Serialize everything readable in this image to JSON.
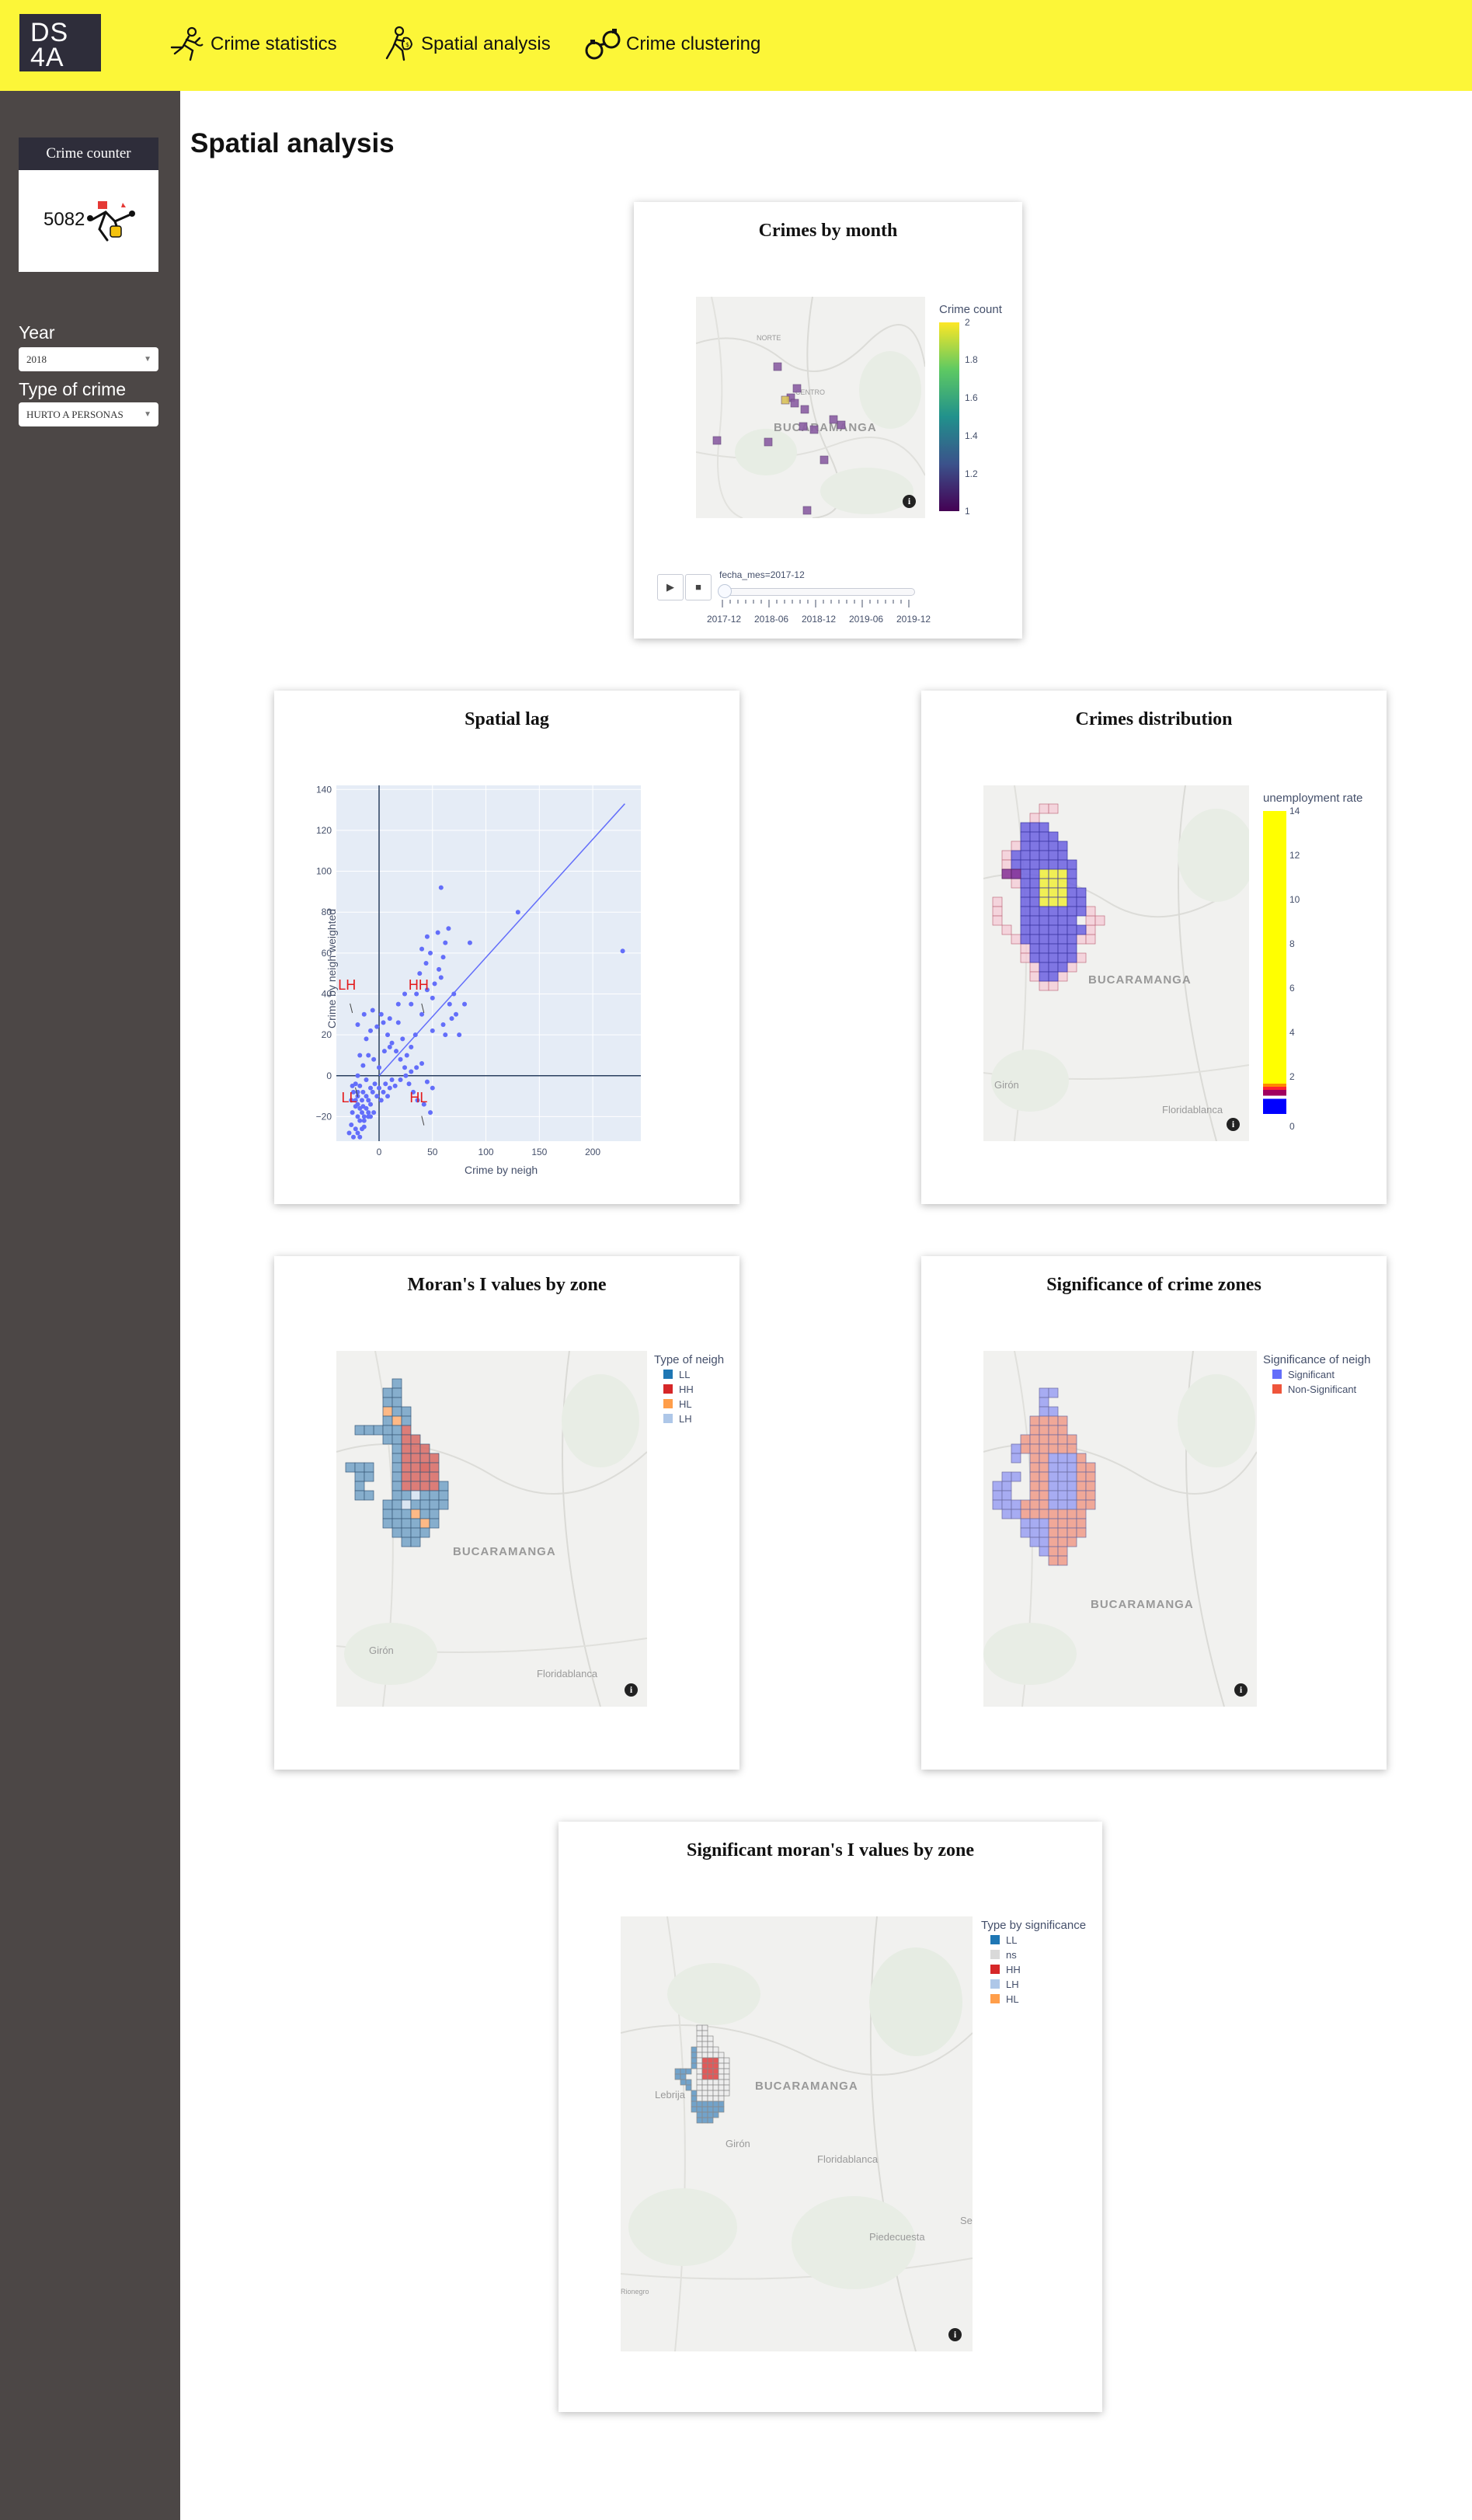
{
  "logo": {
    "line1": "DS",
    "line2": "4A"
  },
  "nav": {
    "items": [
      {
        "label": "Crime statistics",
        "icon": "running-thief-icon"
      },
      {
        "label": "Spatial analysis",
        "icon": "thief-bag-icon"
      },
      {
        "label": "Crime clustering",
        "icon": "handcuffs-icon"
      }
    ]
  },
  "sidebar": {
    "counter": {
      "title": "Crime counter",
      "value": "5082",
      "icon": "robbery-icon"
    },
    "year": {
      "label": "Year",
      "value": "2018"
    },
    "crime_type": {
      "label": "Type of crime",
      "value": "HURTO A PERSONAS"
    }
  },
  "main": {
    "title": "Spatial analysis"
  },
  "colors": {
    "topbar": "#fcf638",
    "sidebar": "#4c4746",
    "dark": "#2e2d3a",
    "plotly_blue": "#636efa",
    "plotly_red": "#ef553b",
    "ll": "#1f77b4",
    "hh": "#d62728",
    "hl": "#ff7f0e",
    "lh": "#aec7e8"
  },
  "crimes_by_month": {
    "title": "Crimes by month",
    "colorbar_title": "Crime count",
    "colorbar_ticks": [
      "2",
      "1.8",
      "1.6",
      "1.4",
      "1.2",
      "1"
    ],
    "slider_label": "fecha_mes=2017-12",
    "slider_ticks": [
      "2017-12",
      "2018-06",
      "2018-12",
      "2019-06",
      "2019-12"
    ],
    "play_icon": "play-icon",
    "stop_icon": "stop-icon",
    "map_labels": {
      "city": "BUCARAMANGA",
      "north": "NORTE",
      "center": "CENTRO"
    }
  },
  "spatial_lag": {
    "title": "Spatial lag",
    "xlabel": "Crime by neigh",
    "ylabel": "Crime by neigh weighted",
    "annotations": [
      "LH",
      "HH",
      "LL",
      "HL"
    ]
  },
  "crimes_distribution": {
    "title": "Crimes distribution",
    "colorbar_title": "unemployment rate",
    "colorbar_ticks": [
      "14",
      "12",
      "10",
      "8",
      "6",
      "4",
      "2",
      "0"
    ],
    "map_labels": {
      "city": "BUCARAMANGA",
      "giron": "Girón",
      "floridablanca": "Floridablanca"
    }
  },
  "morans_i": {
    "title": "Moran's I values by zone",
    "legend_title": "Type of neigh",
    "legend": [
      "LL",
      "HH",
      "HL",
      "LH"
    ],
    "map_labels": {
      "city": "BUCARAMANGA",
      "giron": "Girón",
      "floridablanca": "Floridablanca"
    }
  },
  "significance": {
    "title": "Significance of crime zones",
    "legend_title": "Significance of neigh",
    "legend": [
      "Significant",
      "Non-Significant"
    ],
    "map_labels": {
      "city": "BUCARAMANGA"
    }
  },
  "significant_morans": {
    "title": "Significant moran's I values by zone",
    "legend_title": "Type by significance",
    "legend": [
      "LL",
      "ns",
      "HH",
      "LH",
      "HL"
    ],
    "map_labels": {
      "city": "BUCARAMANGA",
      "lebrija": "Lebrija",
      "giron": "Girón",
      "floridablanca": "Floridablanca",
      "piedecuesta": "Piedecuesta",
      "se": "Se",
      "rionegro": "Rionegro"
    }
  },
  "chart_data": [
    {
      "type": "scatter",
      "title": "Spatial lag",
      "xlabel": "Crime by neigh",
      "ylabel": "Crime by neigh weighted",
      "xlim": [
        -40,
        245
      ],
      "ylim": [
        -32,
        142
      ],
      "x_ticks": [
        0,
        50,
        100,
        150,
        200
      ],
      "y_ticks": [
        -20,
        0,
        20,
        40,
        60,
        80,
        100,
        120,
        140
      ],
      "fit_line": {
        "x": [
          0,
          230
        ],
        "y": [
          0,
          133
        ]
      },
      "points": [
        [
          -20,
          -10
        ],
        [
          -18,
          -5
        ],
        [
          -15,
          -8
        ],
        [
          -12,
          -2
        ],
        [
          -22,
          -15
        ],
        [
          -25,
          -18
        ],
        [
          -20,
          -20
        ],
        [
          -15,
          -15
        ],
        [
          -10,
          -12
        ],
        [
          -8,
          -6
        ],
        [
          -18,
          -22
        ],
        [
          -14,
          -25
        ],
        [
          -10,
          -20
        ],
        [
          -5,
          -18
        ],
        [
          -22,
          -12
        ],
        [
          -20,
          -8
        ],
        [
          -16,
          -12
        ],
        [
          -12,
          -10
        ],
        [
          -8,
          -14
        ],
        [
          -6,
          -8
        ],
        [
          -4,
          -4
        ],
        [
          -2,
          -10
        ],
        [
          0,
          -6
        ],
        [
          2,
          -12
        ],
        [
          4,
          -8
        ],
        [
          6,
          -4
        ],
        [
          8,
          -10
        ],
        [
          10,
          -6
        ],
        [
          12,
          -2
        ],
        [
          -25,
          -5
        ],
        [
          -20,
          0
        ],
        [
          -15,
          5
        ],
        [
          -10,
          10
        ],
        [
          -5,
          8
        ],
        [
          0,
          4
        ],
        [
          5,
          12
        ],
        [
          10,
          14
        ],
        [
          -18,
          10
        ],
        [
          -12,
          18
        ],
        [
          -8,
          22
        ],
        [
          -2,
          24
        ],
        [
          4,
          26
        ],
        [
          8,
          20
        ],
        [
          12,
          16
        ],
        [
          16,
          12
        ],
        [
          20,
          8
        ],
        [
          24,
          4
        ],
        [
          28,
          -4
        ],
        [
          32,
          -8
        ],
        [
          36,
          -12
        ],
        [
          -20,
          25
        ],
        [
          -14,
          30
        ],
        [
          -6,
          32
        ],
        [
          2,
          30
        ],
        [
          10,
          28
        ],
        [
          18,
          26
        ],
        [
          22,
          18
        ],
        [
          26,
          10
        ],
        [
          30,
          14
        ],
        [
          34,
          20
        ],
        [
          15,
          -5
        ],
        [
          20,
          -2
        ],
        [
          25,
          0
        ],
        [
          30,
          2
        ],
        [
          35,
          4
        ],
        [
          40,
          6
        ],
        [
          45,
          -3
        ],
        [
          50,
          -6
        ],
        [
          42,
          -14
        ],
        [
          48,
          -18
        ],
        [
          30,
          35
        ],
        [
          35,
          40
        ],
        [
          40,
          30
        ],
        [
          45,
          42
        ],
        [
          50,
          38
        ],
        [
          38,
          50
        ],
        [
          44,
          55
        ],
        [
          48,
          60
        ],
        [
          52,
          45
        ],
        [
          56,
          52
        ],
        [
          60,
          58
        ],
        [
          58,
          48
        ],
        [
          62,
          65
        ],
        [
          55,
          70
        ],
        [
          65,
          72
        ],
        [
          40,
          62
        ],
        [
          45,
          68
        ],
        [
          70,
          40
        ],
        [
          66,
          35
        ],
        [
          72,
          30
        ],
        [
          60,
          25
        ],
        [
          75,
          20
        ],
        [
          80,
          35
        ],
        [
          85,
          65
        ],
        [
          62,
          20
        ],
        [
          68,
          28
        ],
        [
          58,
          92
        ],
        [
          50,
          22
        ],
        [
          24,
          40
        ],
        [
          18,
          35
        ],
        [
          130,
          80
        ],
        [
          228,
          61
        ],
        [
          -28,
          -28
        ],
        [
          -26,
          -24
        ],
        [
          -24,
          -30
        ],
        [
          -22,
          -26
        ],
        [
          -20,
          -28
        ],
        [
          -18,
          -30
        ],
        [
          -16,
          -26
        ],
        [
          -14,
          -22
        ],
        [
          -26,
          -12
        ],
        [
          -24,
          -8
        ],
        [
          -22,
          -4
        ],
        [
          -20,
          -14
        ],
        [
          -18,
          -16
        ],
        [
          -16,
          -18
        ],
        [
          -14,
          -20
        ],
        [
          -12,
          -16
        ],
        [
          -10,
          -18
        ],
        [
          -8,
          -20
        ]
      ]
    },
    {
      "type": "heatmap",
      "title": "Crimes by month",
      "colorbar": {
        "title": "Crime count",
        "range": [
          1,
          2
        ]
      },
      "frame": "2017-12",
      "frames": [
        "2017-12",
        "2018-06",
        "2018-12",
        "2019-06",
        "2019-12"
      ]
    },
    {
      "type": "heatmap",
      "title": "Crimes distribution",
      "colorbar": {
        "title": "unemployment rate",
        "range": [
          0,
          14
        ]
      }
    },
    {
      "type": "heatmap",
      "title": "Moran's I values by zone",
      "categories": [
        "LL",
        "HH",
        "HL",
        "LH"
      ]
    },
    {
      "type": "heatmap",
      "title": "Significance of crime zones",
      "categories": [
        "Significant",
        "Non-Significant"
      ]
    },
    {
      "type": "heatmap",
      "title": "Significant moran's I values by zone",
      "categories": [
        "LL",
        "ns",
        "HH",
        "LH",
        "HL"
      ]
    }
  ]
}
